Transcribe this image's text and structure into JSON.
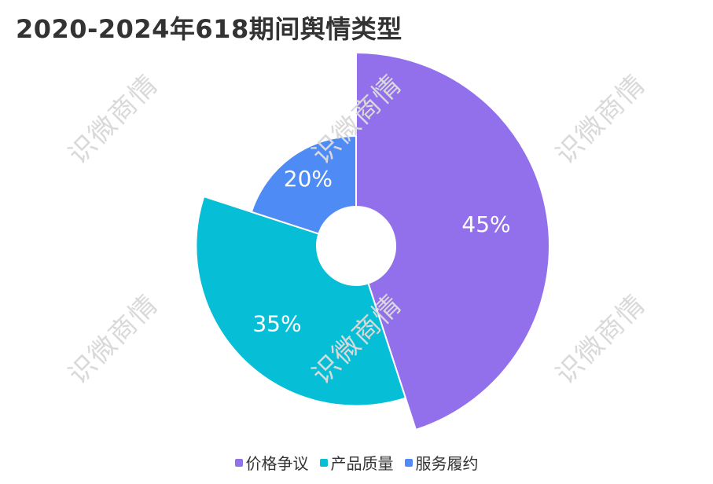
{
  "title": "2020-2024年618期间舆情类型",
  "watermark": "识微商情",
  "chart_data": {
    "type": "pie",
    "variant": "nightingale-rose-donut",
    "title": "2020-2024年618期间舆情类型",
    "legend_position": "bottom-center",
    "slices": [
      {
        "label": "价格争议",
        "value": 45,
        "display": "45%",
        "color": "#9370EB"
      },
      {
        "label": "产品质量",
        "value": 35,
        "display": "35%",
        "color": "#06BED6"
      },
      {
        "label": "服务履约",
        "value": 20,
        "display": "20%",
        "color": "#4F8BF5"
      }
    ]
  }
}
